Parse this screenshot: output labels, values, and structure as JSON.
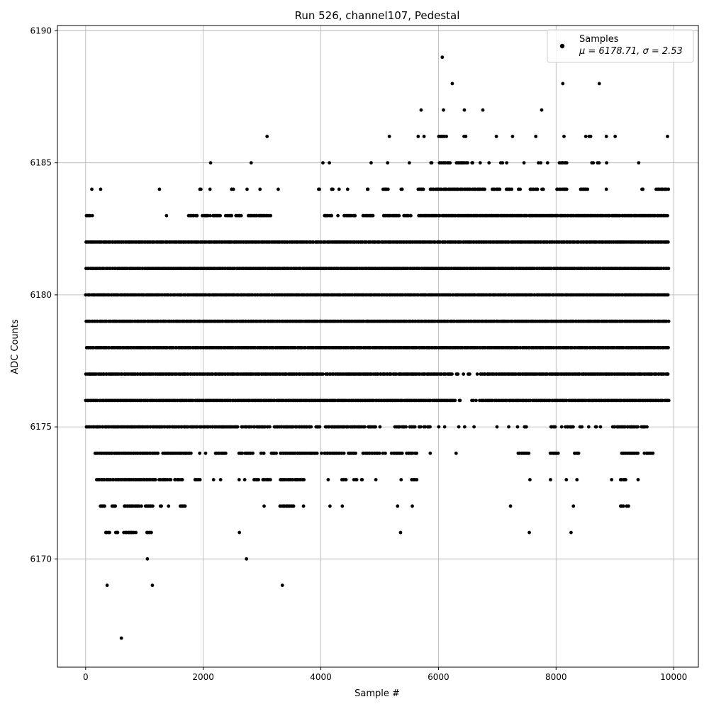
{
  "chart_data": {
    "type": "scatter",
    "title": "Run 526, channel107, Pedestal",
    "xlabel": "Sample #",
    "ylabel": "ADC Counts",
    "xlim": [
      -480,
      10420
    ],
    "ylim": [
      6165.9,
      6190.2
    ],
    "xticks": [
      0,
      2000,
      4000,
      6000,
      8000,
      10000
    ],
    "yticks": [
      6170,
      6175,
      6180,
      6185,
      6190
    ],
    "grid": true,
    "legend_position": "top-right",
    "legend_label": "Samples",
    "legend_stats": "μ = 6178.71, σ = 2.53",
    "mean": 6178.71,
    "sigma": 2.53,
    "n_samples": 10000,
    "marker_color": "#000000",
    "series": [
      {
        "name": "Samples",
        "level_ranges": [
          {
            "y": 6167,
            "x_ranges": [
              [
                600,
                615
              ]
            ]
          },
          {
            "y": 6169,
            "x_ranges": [
              [
                360,
                370
              ],
              [
                1130,
                1140
              ],
              [
                3340,
                3350
              ]
            ]
          },
          {
            "y": 6170,
            "x_ranges": [
              [
                1040,
                1060
              ],
              [
                2730,
                2740
              ]
            ]
          },
          {
            "y": 6171,
            "x_ranges": [
              [
                330,
                420
              ],
              [
                500,
                560
              ],
              [
                640,
                860
              ],
              [
                1040,
                1120
              ],
              [
                2610,
                2620
              ],
              [
                5350,
                5360
              ],
              [
                7540,
                7550
              ],
              [
                8250,
                8260
              ]
            ]
          },
          {
            "y": 6172,
            "x_ranges": [
              [
                240,
                340
              ],
              [
                440,
                520
              ],
              [
                650,
                950
              ],
              [
                1000,
                1150
              ],
              [
                1250,
                1300
              ],
              [
                1400,
                1420
              ],
              [
                1600,
                1700
              ],
              [
                3030,
                3040
              ],
              [
                3300,
                3550
              ],
              [
                3700,
                3710
              ],
              [
                4150,
                4160
              ],
              [
                4360,
                4370
              ],
              [
                5300,
                5310
              ],
              [
                5550,
                5560
              ],
              [
                7220,
                7230
              ],
              [
                8290,
                8300
              ],
              [
                9090,
                9150
              ],
              [
                9200,
                9240
              ]
            ]
          },
          {
            "y": 6173,
            "x_ranges": [
              [
                180,
                1200
              ],
              [
                1250,
                1450
              ],
              [
                1500,
                1650
              ],
              [
                1850,
                1950
              ],
              [
                2170,
                2180
              ],
              [
                2290,
                2300
              ],
              [
                2600,
                2620
              ],
              [
                2700,
                2710
              ],
              [
                2850,
                2950
              ],
              [
                3000,
                3150
              ],
              [
                3300,
                3720
              ],
              [
                4120,
                4130
              ],
              [
                4350,
                4440
              ],
              [
                4560,
                4620
              ],
              [
                4680,
                4720
              ],
              [
                4930,
                4940
              ],
              [
                5360,
                5370
              ],
              [
                5540,
                5640
              ],
              [
                7550,
                7560
              ],
              [
                7900,
                7910
              ],
              [
                8170,
                8180
              ],
              [
                8350,
                8360
              ],
              [
                8940,
                8950
              ],
              [
                9090,
                9200
              ],
              [
                9390,
                9400
              ]
            ]
          },
          {
            "y": 6174,
            "x_ranges": [
              [
                160,
                1250
              ],
              [
                1300,
                1800
              ],
              [
                1930,
                1950
              ],
              [
                2030,
                2050
              ],
              [
                2200,
                2400
              ],
              [
                2600,
                2680
              ],
              [
                2700,
                2850
              ],
              [
                2980,
                3050
              ],
              [
                3150,
                3250
              ],
              [
                3300,
                3950
              ],
              [
                4000,
                4020
              ],
              [
                4050,
                4400
              ],
              [
                4450,
                4600
              ],
              [
                4700,
                5000
              ],
              [
                5050,
                5100
              ],
              [
                5200,
                5400
              ],
              [
                5450,
                5650
              ],
              [
                5850,
                5870
              ],
              [
                6290,
                6310
              ],
              [
                7350,
                7550
              ],
              [
                7900,
                8050
              ],
              [
                8300,
                8400
              ],
              [
                9100,
                9400
              ],
              [
                9500,
                9650
              ]
            ]
          },
          {
            "y": 6175,
            "x_ranges": [
              [
                0,
                2600
              ],
              [
                2650,
                2820
              ],
              [
                2850,
                3140
              ],
              [
                3200,
                3850
              ],
              [
                3900,
                4000
              ],
              [
                4070,
                4750
              ],
              [
                4800,
                4950
              ],
              [
                5000,
                5010
              ],
              [
                5250,
                5450
              ],
              [
                5500,
                5620
              ],
              [
                5650,
                5700
              ],
              [
                5750,
                5870
              ],
              [
                6000,
                6010
              ],
              [
                6100,
                6110
              ],
              [
                6340,
                6350
              ],
              [
                6440,
                6450
              ],
              [
                6600,
                6610
              ],
              [
                6990,
                7000
              ],
              [
                7190,
                7200
              ],
              [
                7340,
                7350
              ],
              [
                7450,
                7510
              ],
              [
                7900,
                8000
              ],
              [
                8090,
                8100
              ],
              [
                8150,
                8300
              ],
              [
                8400,
                8450
              ],
              [
                8550,
                8560
              ],
              [
                8650,
                8700
              ],
              [
                8750,
                8760
              ],
              [
                8950,
                9400
              ],
              [
                9450,
                9550
              ]
            ]
          },
          {
            "y": 6176,
            "x_ranges": [
              [
                0,
                4000
              ],
              [
                4020,
                6300
              ],
              [
                6340,
                6380
              ],
              [
                6550,
                6600
              ],
              [
                6630,
                6650
              ],
              [
                6700,
                9920
              ]
            ]
          },
          {
            "y": 6177,
            "x_ranges": [
              [
                0,
                4050
              ],
              [
                4070,
                6250
              ],
              [
                6300,
                6340
              ],
              [
                6420,
                6430
              ],
              [
                6500,
                6550
              ],
              [
                6650,
                6670
              ],
              [
                6700,
                9920
              ]
            ]
          },
          {
            "y": 6178,
            "x_ranges": [
              [
                0,
                9920
              ]
            ]
          },
          {
            "y": 6179,
            "x_ranges": [
              [
                0,
                9920
              ]
            ]
          },
          {
            "y": 6180,
            "x_ranges": [
              [
                0,
                9920
              ]
            ]
          },
          {
            "y": 6181,
            "x_ranges": [
              [
                0,
                9920
              ]
            ]
          },
          {
            "y": 6182,
            "x_ranges": [
              [
                0,
                9920
              ]
            ]
          },
          {
            "y": 6183,
            "x_ranges": [
              [
                0,
                120
              ],
              [
                1370,
                1380
              ],
              [
                1750,
                1900
              ],
              [
                1980,
                2120
              ],
              [
                2150,
                2300
              ],
              [
                2380,
                2500
              ],
              [
                2550,
                2650
              ],
              [
                2750,
                3150
              ],
              [
                4050,
                4200
              ],
              [
                4280,
                4300
              ],
              [
                4380,
                4600
              ],
              [
                4700,
                4900
              ],
              [
                5050,
                5350
              ],
              [
                5400,
                5550
              ],
              [
                5650,
                9900
              ]
            ]
          },
          {
            "y": 6184,
            "x_ranges": [
              [
                100,
                110
              ],
              [
                250,
                260
              ],
              [
                1250,
                1260
              ],
              [
                1930,
                1980
              ],
              [
                2100,
                2130
              ],
              [
                2480,
                2520
              ],
              [
                2740,
                2750
              ],
              [
                2960,
                2970
              ],
              [
                3270,
                3280
              ],
              [
                3950,
                3990
              ],
              [
                4180,
                4220
              ],
              [
                4300,
                4320
              ],
              [
                4450,
                4460
              ],
              [
                4780,
                4820
              ],
              [
                5050,
                5150
              ],
              [
                5350,
                5400
              ],
              [
                5650,
                5750
              ],
              [
                5850,
                6800
              ],
              [
                6900,
                7050
              ],
              [
                7150,
                7250
              ],
              [
                7350,
                7400
              ],
              [
                7550,
                7700
              ],
              [
                7750,
                7800
              ],
              [
                8000,
                8200
              ],
              [
                8400,
                8550
              ],
              [
                8850,
                8860
              ],
              [
                9450,
                9500
              ],
              [
                9700,
                9920
              ]
            ]
          },
          {
            "y": 6185,
            "x_ranges": [
              [
                2120,
                2130
              ],
              [
                2810,
                2820
              ],
              [
                4030,
                4040
              ],
              [
                4140,
                4150
              ],
              [
                4850,
                4860
              ],
              [
                5130,
                5140
              ],
              [
                5500,
                5510
              ],
              [
                5850,
                5900
              ],
              [
                6000,
                6200
              ],
              [
                6300,
                6500
              ],
              [
                6550,
                6600
              ],
              [
                6700,
                6720
              ],
              [
                6850,
                6870
              ],
              [
                7050,
                7100
              ],
              [
                7150,
                7170
              ],
              [
                7450,
                7460
              ],
              [
                7700,
                7750
              ],
              [
                7850,
                7860
              ],
              [
                8050,
                8200
              ],
              [
                8600,
                8650
              ],
              [
                8700,
                8750
              ],
              [
                8850,
                8870
              ],
              [
                9400,
                9410
              ]
            ]
          },
          {
            "y": 6186,
            "x_ranges": [
              [
                3080,
                3090
              ],
              [
                5160,
                5170
              ],
              [
                5650,
                5660
              ],
              [
                5750,
                5760
              ],
              [
                6000,
                6100
              ],
              [
                6120,
                6150
              ],
              [
                6430,
                6470
              ],
              [
                6980,
                6990
              ],
              [
                7250,
                7270
              ],
              [
                7650,
                7660
              ],
              [
                8130,
                8140
              ],
              [
                8500,
                8510
              ],
              [
                8550,
                8600
              ],
              [
                8850,
                8860
              ],
              [
                9000,
                9010
              ],
              [
                9890,
                9900
              ]
            ]
          },
          {
            "y": 6187,
            "x_ranges": [
              [
                5700,
                5710
              ],
              [
                6080,
                6090
              ],
              [
                6430,
                6450
              ],
              [
                6750,
                6760
              ],
              [
                7750,
                7760
              ]
            ]
          },
          {
            "y": 6188,
            "x_ranges": [
              [
                6230,
                6240
              ],
              [
                8110,
                8120
              ],
              [
                8730,
                8740
              ]
            ]
          },
          {
            "y": 6189,
            "x_ranges": [
              [
                6060,
                6070
              ]
            ]
          }
        ]
      }
    ]
  }
}
